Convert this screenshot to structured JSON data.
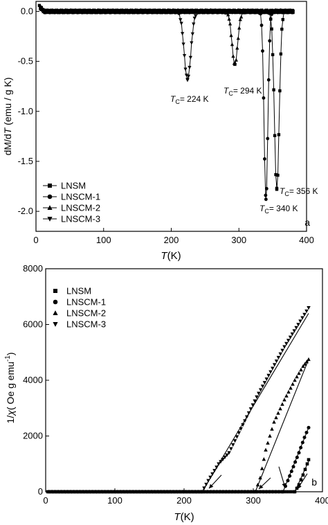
{
  "chart_data": [
    {
      "type": "line",
      "panel_label": "a",
      "xlabel": "T(K)",
      "xlabel_italic": "T",
      "xlabel_unit": "(K)",
      "ylabel": "dM/dT (emu / g K)",
      "ylabel_parts": [
        "dM/d",
        "T",
        " (emu / g K)"
      ],
      "xlim": [
        0,
        400
      ],
      "ylim": [
        -2.2,
        0.1
      ],
      "xticks": [
        0,
        100,
        200,
        300,
        400
      ],
      "yticks": [
        0.0,
        -0.5,
        -1.0,
        -1.5,
        -2.0
      ],
      "ytick_labels": [
        "0.0",
        "-0.5",
        "-1.0",
        "-1.5",
        "-2.0"
      ],
      "legend_position": "bottom-left",
      "series": [
        {
          "name": "LNSM",
          "marker": "square",
          "tc": 356,
          "min": -1.78,
          "width": 5
        },
        {
          "name": "LNSCM-1",
          "marker": "circle",
          "tc": 340,
          "min": -1.88,
          "width": 4
        },
        {
          "name": "LNSCM-2",
          "marker": "triangle-up",
          "tc": 294,
          "min": -0.53,
          "width": 6
        },
        {
          "name": "LNSCM-3",
          "marker": "triangle-down",
          "tc": 224,
          "min": -0.68,
          "width": 7
        }
      ],
      "annotations": [
        {
          "sub": "C",
          "value": "= 224 K",
          "x": 224,
          "y": -0.68
        },
        {
          "sub": "C",
          "value": "= 294 K",
          "x": 294,
          "y": -0.53
        },
        {
          "sub": "C",
          "value": "= 356 K",
          "x": 356,
          "y": -1.78
        },
        {
          "sub": "C",
          "value": "= 340 K",
          "x": 340,
          "y": -1.88
        }
      ]
    },
    {
      "type": "scatter",
      "panel_label": "b",
      "xlabel": "T(K)",
      "xlabel_italic": "T",
      "xlabel_unit": "(K)",
      "ylabel": "1/χ( Oe g emu⁻¹)",
      "ylabel_parts": [
        "1/",
        "χ",
        "( Oe g emu",
        "-1",
        ")"
      ],
      "xlim": [
        0,
        400
      ],
      "ylim": [
        0,
        8000
      ],
      "xticks": [
        0,
        100,
        200,
        300,
        400
      ],
      "yticks": [
        0,
        2000,
        4000,
        6000,
        8000
      ],
      "ytick_labels": [
        "0",
        "2000",
        "4000",
        "6000",
        "8000"
      ],
      "legend_position": "top-left",
      "series": [
        {
          "name": "LNSM",
          "marker": "square",
          "onset": 360,
          "points": [
            [
              360,
              0
            ],
            [
              366,
              250
            ],
            [
              372,
              600
            ],
            [
              378,
              1000
            ],
            [
              380,
              1150
            ]
          ],
          "fit": [
            [
              360,
              0
            ],
            [
              381,
              1150
            ]
          ]
        },
        {
          "name": "LNSCM-1",
          "marker": "circle",
          "onset": 343,
          "points": [
            [
              343,
              0
            ],
            [
              350,
              400
            ],
            [
              358,
              900
            ],
            [
              366,
              1400
            ],
            [
              374,
              1950
            ],
            [
              380,
              2300
            ]
          ],
          "fit": [
            [
              343,
              0
            ],
            [
              380,
              2300
            ]
          ]
        },
        {
          "name": "LNSCM-2",
          "marker": "triangle-up",
          "onset": 303,
          "points": [
            [
              303,
              0
            ],
            [
              310,
              500
            ],
            [
              318,
              1500
            ],
            [
              330,
              2500
            ],
            [
              345,
              3300
            ],
            [
              360,
              4000
            ],
            [
              372,
              4500
            ],
            [
              380,
              4750
            ]
          ],
          "fit": [
            [
              303,
              0
            ],
            [
              380,
              4750
            ]
          ]
        },
        {
          "name": "LNSCM-3",
          "marker": "triangle-down",
          "onset": 226,
          "points": [
            [
              226,
              0
            ],
            [
              235,
              400
            ],
            [
              250,
              1000
            ],
            [
              265,
              1400
            ],
            [
              285,
              2400
            ],
            [
              305,
              3400
            ],
            [
              325,
              4300
            ],
            [
              345,
              5200
            ],
            [
              365,
              6000
            ],
            [
              380,
              6600
            ]
          ],
          "fit": [
            [
              226,
              0
            ],
            [
              380,
              6400
            ]
          ]
        }
      ],
      "arrows": [
        {
          "from": [
            254,
            600
          ],
          "to": [
            236,
            120
          ]
        },
        {
          "from": [
            325,
            500
          ],
          "to": [
            308,
            100
          ]
        },
        {
          "from": [
            337,
            900
          ],
          "to": [
            346,
            150
          ]
        },
        {
          "from": [
            378,
            650
          ],
          "to": [
            364,
            100
          ]
        }
      ]
    }
  ]
}
